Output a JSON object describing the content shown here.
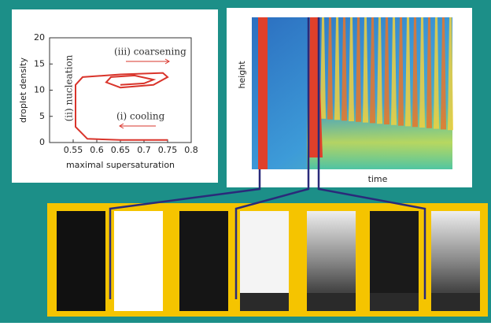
{
  "chart_data": {
    "type": "line",
    "x_label": "maximal supersaturation",
    "y_label": "droplet density",
    "x": [
      0.75,
      0.65,
      0.58,
      0.555,
      0.555,
      0.57,
      0.65,
      0.74,
      0.75,
      0.72,
      0.65,
      0.62,
      0.63,
      0.68,
      0.72,
      0.7,
      0.65
    ],
    "series": [
      {
        "color": "#d9342b",
        "values": [
          0.5,
          0.5,
          0.7,
          3,
          11,
          12.5,
          13,
          13.3,
          12.5,
          11,
          10.5,
          11.5,
          12.5,
          12.8,
          12,
          11.3,
          11
        ]
      }
    ],
    "xlim": [
      0.5,
      0.8
    ],
    "xticks": [
      0.55,
      0.6,
      0.65,
      0.7,
      0.75,
      0.8
    ],
    "ylim": [
      0,
      20
    ],
    "yticks": [
      0,
      5,
      10,
      15,
      20
    ],
    "annotations": [
      "(iii) coarsening",
      "(ii) nucleation",
      "(i) cooling"
    ]
  },
  "heatmap": {
    "y_label": "height",
    "x_label": "time"
  }
}
